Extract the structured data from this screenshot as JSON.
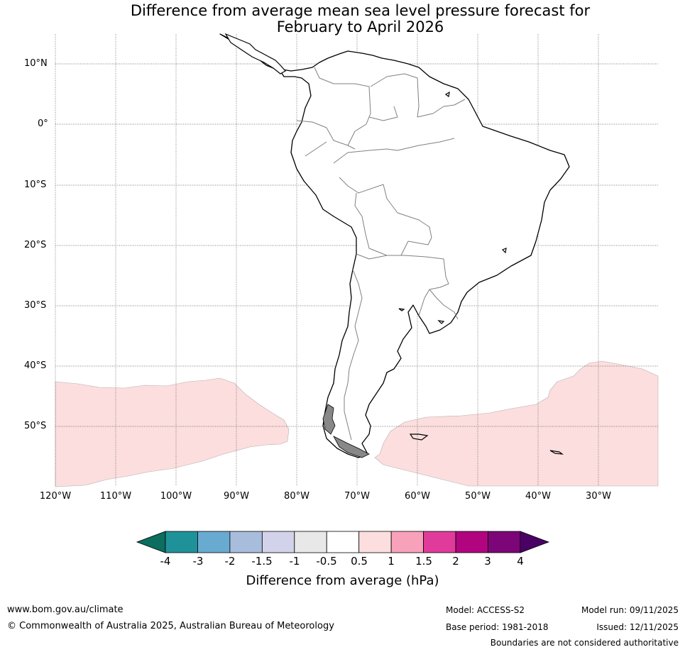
{
  "title": {
    "line1": "Difference from average mean sea level pressure forecast for",
    "line2": "February to April 2026"
  },
  "map": {
    "lat_labels": [
      "10°N",
      "0°",
      "10°S",
      "20°S",
      "30°S",
      "40°S",
      "50°S"
    ],
    "lon_labels": [
      "120°W",
      "110°W",
      "100°W",
      "90°W",
      "80°W",
      "70°W",
      "60°W",
      "50°W",
      "40°W",
      "30°W"
    ],
    "extent": {
      "lon_min": -120,
      "lon_max": -20,
      "lat_min": -60,
      "lat_max": 15
    },
    "anomaly_region_color": "#fcdede",
    "anomaly_regions": [
      "south-east Pacific: +0.5 to 1 hPa",
      "south-west Atlantic: +0.5 to 1 hPa"
    ]
  },
  "colorbar": {
    "tick_labels": [
      "-4",
      "-3",
      "-2",
      "-1.5",
      "-1",
      "-0.5",
      "0.5",
      "1",
      "1.5",
      "2",
      "3",
      "4"
    ],
    "colors": [
      "#0b6e5e",
      "#1f9199",
      "#69aad1",
      "#a8bcdc",
      "#d2d3ea",
      "#e8e8e8",
      "#ffffff",
      "#fcdede",
      "#f8a1bb",
      "#e03b9a",
      "#b0057f",
      "#7c0577",
      "#4b0066"
    ],
    "label": "Difference from average (hPa)"
  },
  "footer": {
    "website": "www.bom.gov.au/climate",
    "copyright": "© Commonwealth of Australia 2025, Australian Bureau of Meteorology",
    "model": "Model: ACCESS-S2",
    "base_period": "Base period: 1981-2018",
    "model_run": "Model run: 09/11/2025",
    "issued": "Issued: 12/11/2025",
    "disclaimer": "Boundaries are not considered authoritative"
  }
}
